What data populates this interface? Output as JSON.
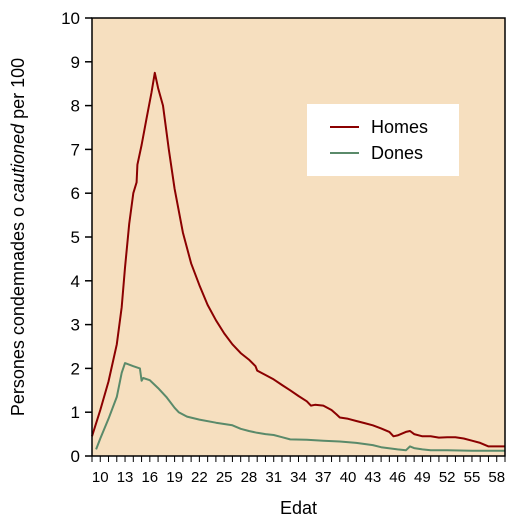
{
  "chart_data": {
    "type": "line",
    "xlabel": "Edat",
    "ylabel_parts": [
      "Persones condemnades o ",
      "cautioned",
      " per 100"
    ],
    "xlim": [
      9,
      59
    ],
    "ylim": [
      0,
      10
    ],
    "x_ticks": [
      10,
      13,
      16,
      19,
      22,
      25,
      28,
      31,
      34,
      37,
      40,
      43,
      46,
      49,
      52,
      55,
      58
    ],
    "y_ticks": [
      0,
      1,
      2,
      3,
      4,
      5,
      6,
      7,
      8,
      9,
      10
    ],
    "grid": false,
    "legend_position": "top-right",
    "background_color": "#f6dfbf",
    "series": [
      {
        "name": "Homes",
        "color": "#8b0000",
        "points": [
          [
            9,
            0.45
          ],
          [
            10,
            1.05
          ],
          [
            11,
            1.7
          ],
          [
            12,
            2.55
          ],
          [
            12.6,
            3.4
          ],
          [
            13,
            4.3
          ],
          [
            13.5,
            5.3
          ],
          [
            14,
            6.0
          ],
          [
            14.4,
            6.25
          ],
          [
            14.5,
            6.65
          ],
          [
            15,
            7.1
          ],
          [
            15.6,
            7.7
          ],
          [
            16.2,
            8.3
          ],
          [
            16.6,
            8.75
          ],
          [
            17,
            8.4
          ],
          [
            17.6,
            8.0
          ],
          [
            18.3,
            7.0
          ],
          [
            19,
            6.1
          ],
          [
            20,
            5.1
          ],
          [
            21,
            4.4
          ],
          [
            22,
            3.9
          ],
          [
            23,
            3.45
          ],
          [
            24,
            3.1
          ],
          [
            25,
            2.8
          ],
          [
            26,
            2.55
          ],
          [
            27,
            2.35
          ],
          [
            28,
            2.2
          ],
          [
            28.8,
            2.05
          ],
          [
            29,
            1.95
          ],
          [
            30,
            1.85
          ],
          [
            31,
            1.75
          ],
          [
            32,
            1.62
          ],
          [
            33,
            1.5
          ],
          [
            34,
            1.37
          ],
          [
            35,
            1.25
          ],
          [
            35.5,
            1.15
          ],
          [
            36,
            1.17
          ],
          [
            37,
            1.15
          ],
          [
            38,
            1.05
          ],
          [
            38.6,
            0.95
          ],
          [
            39,
            0.88
          ],
          [
            40,
            0.85
          ],
          [
            41,
            0.8
          ],
          [
            42,
            0.75
          ],
          [
            43,
            0.7
          ],
          [
            44,
            0.63
          ],
          [
            45,
            0.55
          ],
          [
            45.5,
            0.45
          ],
          [
            46,
            0.47
          ],
          [
            47,
            0.55
          ],
          [
            47.5,
            0.57
          ],
          [
            48,
            0.5
          ],
          [
            49,
            0.45
          ],
          [
            50,
            0.45
          ],
          [
            51,
            0.42
          ],
          [
            52,
            0.43
          ],
          [
            53,
            0.43
          ],
          [
            54,
            0.4
          ],
          [
            55,
            0.35
          ],
          [
            56,
            0.3
          ],
          [
            57,
            0.22
          ],
          [
            58,
            0.22
          ],
          [
            59,
            0.22
          ]
        ]
      },
      {
        "name": "Dones",
        "color": "#5a8a6a",
        "points": [
          [
            9.5,
            0.15
          ],
          [
            10,
            0.4
          ],
          [
            11,
            0.85
          ],
          [
            12,
            1.35
          ],
          [
            12.6,
            1.9
          ],
          [
            13,
            2.12
          ],
          [
            14,
            2.05
          ],
          [
            14.8,
            2.0
          ],
          [
            15,
            1.72
          ],
          [
            15.2,
            1.78
          ],
          [
            16,
            1.73
          ],
          [
            17,
            1.55
          ],
          [
            18,
            1.35
          ],
          [
            19,
            1.1
          ],
          [
            19.5,
            1.0
          ],
          [
            20.5,
            0.9
          ],
          [
            22,
            0.83
          ],
          [
            24,
            0.76
          ],
          [
            26,
            0.7
          ],
          [
            27,
            0.62
          ],
          [
            28,
            0.57
          ],
          [
            29,
            0.53
          ],
          [
            30,
            0.5
          ],
          [
            31,
            0.48
          ],
          [
            32,
            0.43
          ],
          [
            33,
            0.38
          ],
          [
            35,
            0.37
          ],
          [
            37,
            0.35
          ],
          [
            39,
            0.33
          ],
          [
            41,
            0.3
          ],
          [
            43,
            0.25
          ],
          [
            44,
            0.2
          ],
          [
            46,
            0.15
          ],
          [
            47,
            0.13
          ],
          [
            47.5,
            0.22
          ],
          [
            48,
            0.18
          ],
          [
            49,
            0.15
          ],
          [
            50,
            0.13
          ],
          [
            52,
            0.13
          ],
          [
            55,
            0.12
          ],
          [
            58,
            0.12
          ],
          [
            59,
            0.12
          ]
        ]
      }
    ]
  }
}
